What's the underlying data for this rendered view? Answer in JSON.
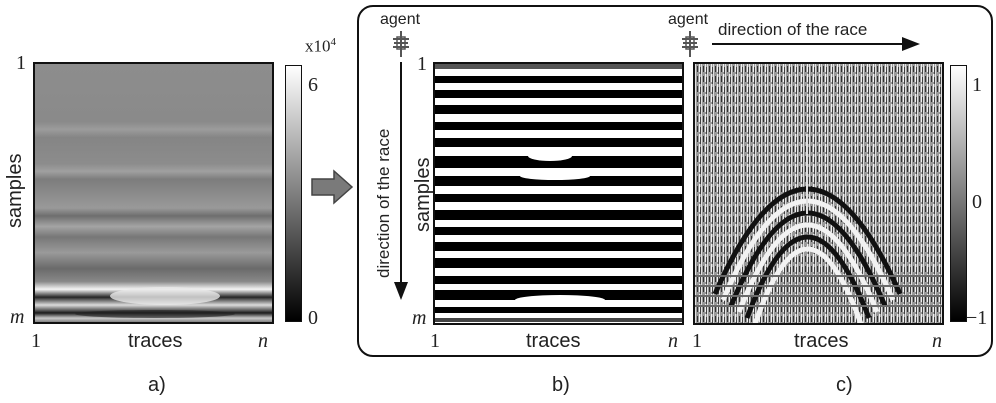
{
  "panel_a": {
    "ytop": "1",
    "ybottom": "m",
    "xleft": "1",
    "xright": "n",
    "xlabel": "traces",
    "ylabel": "samples",
    "colorbar": {
      "max": "6",
      "min": "0",
      "multiplier": "x10",
      "exponent": "4"
    },
    "caption": "a)"
  },
  "panel_b": {
    "agent": "agent",
    "direction": "direction of the race",
    "ytop": "1",
    "ybottom": "m",
    "xleft": "1",
    "xright": "n",
    "xlabel": "traces",
    "ylabel": "samples",
    "caption": "b)"
  },
  "panel_c": {
    "agent": "agent",
    "direction": "direction of the race",
    "xleft": "1",
    "xright": "n",
    "xlabel": "traces",
    "colorbar": {
      "max": "1",
      "mid": "0",
      "min": "−1"
    },
    "caption": "c)"
  }
}
